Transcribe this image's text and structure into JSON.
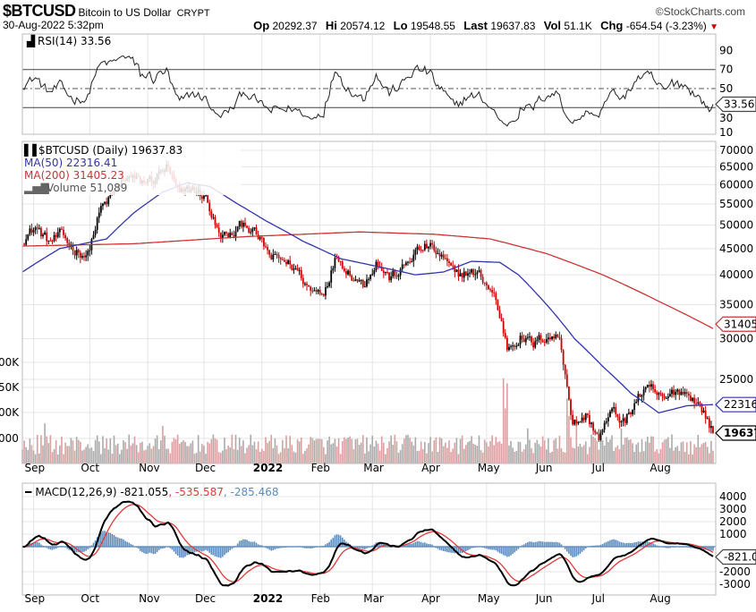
{
  "header": {
    "symbol": "$BTCUSD",
    "name": "Bitcoin to US Dollar",
    "exchange": "CRYPT",
    "copyright": "©StockCharts.com",
    "datetime": "30-Aug-2022 5:32pm",
    "op_label": "Op",
    "op": "20292.37",
    "hi_label": "Hi",
    "hi": "20574.12",
    "lo_label": "Lo",
    "lo": "19548.55",
    "last_label": "Last",
    "last": "19637.83",
    "vol_label": "Vol",
    "vol": "51.1K",
    "chg_label": "Chg",
    "chg": "-654.54 (-3.23%)",
    "chg_arrow": "▼"
  },
  "rsi_panel": {
    "legend": "RSI(14) 33.56",
    "ticks": [
      "90",
      "70",
      "50",
      "30",
      "10"
    ],
    "tag": "33.56"
  },
  "price_panel": {
    "legend_main": "$BTCUSD (Daily) 19637.83",
    "legend_ma50": "MA(50) 22316.41",
    "legend_ma200": "MA(200) 31405.23",
    "legend_volume": "Volume 51,089",
    "ticks": [
      "70000",
      "65000",
      "60000",
      "55000",
      "50000",
      "45000",
      "40000",
      "35000",
      "30000",
      "25000"
    ],
    "volume_ticks": [
      "00K",
      "50K",
      "00K",
      "000"
    ],
    "tag_ma200": "31405.",
    "tag_ma50": "22316.",
    "tag_last": "19637."
  },
  "macd_panel": {
    "legend_macd": "MACD(12,26,9) -821.055",
    "legend_signal": ", -535.587",
    "legend_hist": ", -285.468",
    "ticks": [
      "4000",
      "3000",
      "2000",
      "1000",
      "-2000",
      "-3000"
    ],
    "tag": "-821.05"
  },
  "x_axis": [
    "Sep",
    "Oct",
    "Nov",
    "Dec",
    "2022",
    "Feb",
    "Mar",
    "Apr",
    "May",
    "Jun",
    "Jul",
    "Aug"
  ],
  "colors": {
    "ma50": "#3333aa",
    "ma200": "#cc3333",
    "up": "#000000",
    "down": "#cc0000",
    "volume_up": "#aaaaaa",
    "volume_down": "#d9a0a0",
    "hist": "#5b8bbd",
    "signal": "#e03a3a"
  },
  "chart_data": {
    "type": "candlestick",
    "start_date": "2021-08-26",
    "weekly_close_step_days": 7,
    "weekly_close": [
      47000,
      49500,
      46400,
      47700,
      44800,
      43800,
      53800,
      57400,
      62200,
      60600,
      61400,
      64900,
      56900,
      58900,
      56500,
      47600,
      47600,
      50800,
      47100,
      43100,
      42600,
      40700,
      37200,
      37300,
      43500,
      40500,
      38300,
      42500,
      39400,
      40900,
      44300,
      45500,
      43200,
      39900,
      40500,
      39700,
      36500,
      28900,
      30300,
      29200,
      30500,
      30100,
      20400,
      21200,
      19300,
      21600,
      20600,
      23200,
      23800,
      22600,
      23900,
      23300,
      21600
    ],
    "last_day": 369,
    "last_close": 19637.83,
    "ma50": [
      [
        0,
        40500
      ],
      [
        20,
        45000
      ],
      [
        45,
        47000
      ],
      [
        60,
        53000
      ],
      [
        75,
        58000
      ],
      [
        88,
        60500
      ],
      [
        100,
        59500
      ],
      [
        115,
        55000
      ],
      [
        130,
        51000
      ],
      [
        150,
        46500
      ],
      [
        170,
        43000
      ],
      [
        190,
        41500
      ],
      [
        210,
        40000
      ],
      [
        225,
        40500
      ],
      [
        240,
        42500
      ],
      [
        255,
        42300
      ],
      [
        265,
        40000
      ],
      [
        280,
        35000
      ],
      [
        295,
        30000
      ],
      [
        310,
        26500
      ],
      [
        325,
        23500
      ],
      [
        340,
        21500
      ],
      [
        355,
        22200
      ],
      [
        369,
        22316.41
      ]
    ],
    "ma200": [
      [
        0,
        45500
      ],
      [
        60,
        46000
      ],
      [
        120,
        47500
      ],
      [
        180,
        48500
      ],
      [
        220,
        48000
      ],
      [
        250,
        47000
      ],
      [
        280,
        44000
      ],
      [
        310,
        40000
      ],
      [
        340,
        35500
      ],
      [
        369,
        31405.23
      ]
    ],
    "volume_spikes_k": [
      [
        257,
        170
      ],
      [
        259,
        160
      ],
      [
        258,
        110
      ],
      [
        291,
        130
      ],
      [
        292,
        95
      ],
      [
        296,
        80
      ],
      [
        270,
        70
      ],
      [
        320,
        70
      ],
      [
        75,
        75
      ],
      [
        12,
        80
      ]
    ],
    "price_axis": "log",
    "price_range": [
      18000,
      72000
    ],
    "rsi_range": [
      0,
      100
    ],
    "macd_range": [
      -3500,
      4500
    ]
  }
}
